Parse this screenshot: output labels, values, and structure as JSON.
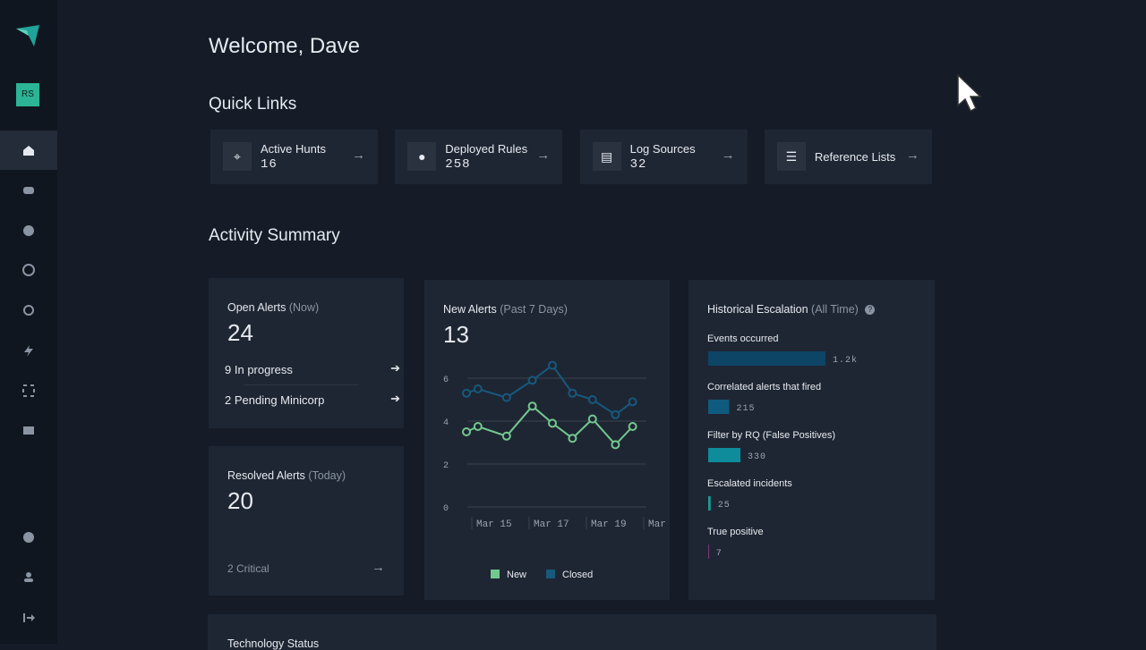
{
  "sidebar": {
    "avatar": "RS"
  },
  "welcome": "Welcome, Dave",
  "quick_links": {
    "title": "Quick Links",
    "items": [
      {
        "label": "Active Hunts",
        "count": 16
      },
      {
        "label": "Deployed Rules",
        "count": 258
      },
      {
        "label": "Log Sources",
        "count": 32
      },
      {
        "label": "Reference Lists"
      }
    ]
  },
  "activity_summary": {
    "title": "Activity Summary",
    "open_alerts": {
      "title": "Open Alerts",
      "qualifier": "(Now)",
      "value": 24,
      "rows": [
        {
          "count": 9,
          "label": "In progress"
        },
        {
          "count": 2,
          "label": "Pending Minicorp"
        }
      ]
    },
    "resolved_alerts": {
      "title": "Resolved Alerts",
      "qualifier": "(Today)",
      "value": 20,
      "footer": "2 Critical"
    },
    "new_alerts": {
      "title": "New Alerts",
      "qualifier": "(Past 7 Days)",
      "value": 13
    },
    "historical_escalation": {
      "title": "Historical Escalation",
      "qualifier": "(All Time)"
    }
  },
  "chart_data": [
    {
      "type": "line",
      "x": [
        14,
        14.4,
        15.4,
        16.3,
        17,
        17.7,
        18.4,
        19.2,
        19.8
      ],
      "series": [
        {
          "name": "New",
          "color": "#72c98f",
          "values": [
            3.5,
            3.75,
            3.3,
            4.7,
            3.9,
            3.2,
            4.1,
            2.9,
            3.75
          ]
        },
        {
          "name": "Closed",
          "color": "#16597d",
          "values": [
            5.3,
            5.5,
            5.1,
            5.9,
            6.6,
            5.3,
            5.0,
            4.3,
            4.9
          ]
        }
      ],
      "xlim": [
        14,
        21
      ],
      "xticks": [
        {
          "value": 15,
          "label": "Mar 15"
        },
        {
          "value": 17,
          "label": "Mar 17"
        },
        {
          "value": 19,
          "label": "Mar 19"
        },
        {
          "value": 21,
          "label": "Mar"
        }
      ],
      "ylim": [
        0,
        7
      ],
      "yticks": [
        0,
        2,
        4,
        6
      ],
      "grid": true,
      "legend": "bottom"
    },
    {
      "type": "bar",
      "orientation": "horizontal",
      "categories": [
        "Events occurred",
        "Correlated alerts that fired",
        "Filter by RQ (False Positives)",
        "Escalated incidents",
        "True positive"
      ],
      "values": [
        1200,
        215,
        330,
        25,
        7
      ],
      "value_labels": [
        "1.2k",
        "215",
        "330",
        "25",
        "7"
      ],
      "colors": [
        "#0d4566",
        "#0f5a7f",
        "#0e8c9b",
        "#1a9d94",
        "#9a3b8e"
      ],
      "xlim": [
        0,
        1200
      ]
    }
  ],
  "technology_status": {
    "title": "Technology Status"
  }
}
